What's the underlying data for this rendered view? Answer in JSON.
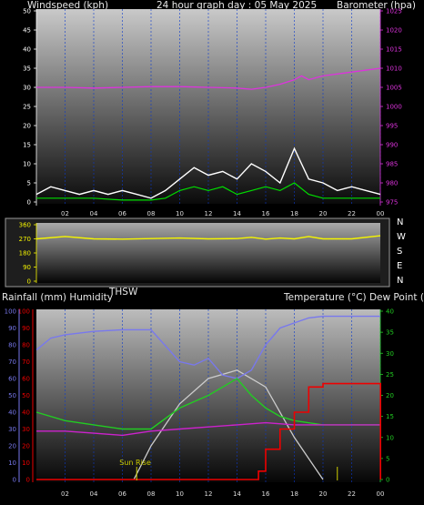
{
  "header": {
    "left_title": "Windspeed (kph)",
    "center_title": "24 hour graph day : 05 May 2025",
    "right_title": "Barometer (hpa)"
  },
  "colors": {
    "windspeed": "#ffffff",
    "wind_average": "#00dd00",
    "barometer": "#dd33dd",
    "wind_direction": "#f5f500",
    "humidity": "#7878ee",
    "rainfall": "#ee0000",
    "temperature": "#22cc22",
    "dew_point": "#cc22cc",
    "sun": "#cccccc",
    "sunrise_marker": "#cccc00",
    "grid": "#0a3acd"
  },
  "chart_data": [
    {
      "type": "line",
      "x_ticks": [
        "02",
        "04",
        "06",
        "08",
        "10",
        "12",
        "14",
        "16",
        "18",
        "20",
        "22",
        "00"
      ],
      "y_left": {
        "label": "Windspeed (kph)",
        "range": [
          0,
          50
        ],
        "ticks": [
          "0",
          "5",
          "10",
          "15",
          "20",
          "25",
          "30",
          "35",
          "40",
          "45",
          "50"
        ]
      },
      "y_right": {
        "label": "Barometer (hpa)",
        "range": [
          975,
          1025
        ],
        "ticks": [
          "975",
          "980",
          "985",
          "990",
          "995",
          "1000",
          "1005",
          "1010",
          "1015",
          "1020",
          "1025"
        ]
      },
      "series": [
        {
          "name": "Windspeed",
          "axis": "left",
          "x": [
            0,
            1,
            2,
            3,
            4,
            5,
            6,
            7,
            8,
            9,
            10,
            11,
            12,
            13,
            14,
            15,
            16,
            17,
            18,
            19,
            20,
            21,
            22,
            23,
            24
          ],
          "values": [
            2,
            4,
            3,
            2,
            3,
            2,
            3,
            2,
            1,
            3,
            6,
            9,
            7,
            8,
            6,
            10,
            8,
            5,
            14,
            6,
            5,
            3,
            4,
            3,
            2
          ]
        },
        {
          "name": "Wind average",
          "axis": "left",
          "x": [
            0,
            2,
            4,
            6,
            8,
            9,
            10,
            11,
            12,
            13,
            14,
            15,
            16,
            17,
            18,
            19,
            20,
            22,
            24
          ],
          "values": [
            1,
            1,
            1,
            0.5,
            0.5,
            1,
            3,
            4,
            3,
            4,
            2,
            3,
            4,
            3,
            5,
            2,
            1,
            1,
            1
          ]
        },
        {
          "name": "Barometer",
          "axis": "right",
          "x": [
            0,
            2,
            4,
            6,
            8,
            10,
            12,
            14,
            15,
            16,
            17,
            18,
            18.5,
            19,
            20,
            22,
            24
          ],
          "values": [
            1005,
            1005,
            1004.8,
            1005,
            1005.2,
            1005.2,
            1005,
            1004.8,
            1004.5,
            1005,
            1005.8,
            1007,
            1008,
            1007,
            1008,
            1009,
            1010
          ]
        }
      ]
    },
    {
      "type": "line",
      "x_ticks": [
        "02",
        "04",
        "06",
        "08",
        "10",
        "12",
        "14",
        "16",
        "18",
        "20",
        "22",
        "00"
      ],
      "y_left": {
        "range": [
          0,
          360
        ],
        "ticks": [
          "0",
          "90",
          "180",
          "270",
          "360"
        ]
      },
      "y_right_labels": [
        "N",
        "W",
        "S",
        "E",
        "N"
      ],
      "series": [
        {
          "name": "Wind direction",
          "x": [
            0,
            2,
            4,
            6,
            8,
            10,
            12,
            14,
            15,
            16,
            17,
            18,
            19,
            20,
            22,
            24
          ],
          "values": [
            270,
            285,
            270,
            268,
            272,
            275,
            270,
            272,
            280,
            268,
            275,
            270,
            285,
            270,
            270,
            290
          ]
        }
      ]
    },
    {
      "type": "line",
      "x_ticks": [
        "02",
        "04",
        "06",
        "08",
        "10",
        "12",
        "14",
        "16",
        "18",
        "20",
        "22",
        "00"
      ],
      "labels": {
        "rainfall_humidity": "Rainfall (mm)  Humidity",
        "thsw": "THSW",
        "temp_dew": "Temperature (°C) Dew Point (°C)"
      },
      "y_left_humidity": {
        "range": [
          0,
          100
        ],
        "ticks": [
          "0",
          "10",
          "20",
          "30",
          "40",
          "50",
          "60",
          "70",
          "80",
          "90",
          "100"
        ]
      },
      "y_left_rain": {
        "range": [
          0,
          100
        ],
        "ticks": [
          "0",
          "10",
          "20",
          "30",
          "40",
          "50",
          "60",
          "70",
          "80",
          "90",
          "100"
        ]
      },
      "y_right_temperature": {
        "range": [
          0,
          40
        ],
        "ticks": [
          "0",
          "5",
          "10",
          "15",
          "20",
          "25",
          "30",
          "35",
          "40"
        ]
      },
      "annotations": [
        "Sun Rise"
      ],
      "series": [
        {
          "name": "Humidity",
          "axis": "humidity",
          "x": [
            0,
            1,
            2,
            4,
            6,
            8,
            10,
            11,
            12,
            13,
            14,
            15,
            16,
            17,
            18,
            19,
            20,
            22,
            24
          ],
          "values": [
            77,
            84,
            86,
            88,
            89,
            89,
            70,
            68,
            72,
            62,
            60,
            65,
            80,
            90,
            93,
            96,
            97,
            97,
            97
          ]
        },
        {
          "name": "Rainfall",
          "axis": "rain",
          "x": [
            0,
            15,
            15.5,
            16,
            17,
            18,
            19,
            20,
            24,
            24.01
          ],
          "values": [
            0,
            0,
            5,
            18,
            30,
            40,
            55,
            57,
            57,
            0
          ]
        },
        {
          "name": "Temperature",
          "axis": "temperature",
          "x": [
            0,
            2,
            4,
            6,
            8,
            10,
            12,
            13,
            14,
            15,
            16,
            17,
            18,
            20,
            24
          ],
          "values": [
            16,
            14,
            13,
            12,
            12,
            17,
            20,
            22,
            24,
            20,
            17,
            15,
            14,
            13,
            13
          ]
        },
        {
          "name": "Dew Point",
          "axis": "temperature",
          "x": [
            0,
            2,
            4,
            6,
            8,
            10,
            12,
            14,
            16,
            18,
            20,
            24
          ],
          "values": [
            11.5,
            11.5,
            11,
            10.5,
            11.5,
            12,
            12.5,
            13,
            13.5,
            13,
            13,
            13
          ]
        },
        {
          "name": "Sun",
          "axis": "temperature",
          "x": [
            6.8,
            8,
            10,
            12,
            14,
            16,
            18,
            20
          ],
          "values": [
            0,
            8,
            18,
            24,
            26,
            22,
            10,
            0
          ]
        }
      ],
      "markers": [
        {
          "label": "Sun Rise",
          "x": 7
        },
        {
          "label": "",
          "x": 21
        }
      ]
    }
  ]
}
